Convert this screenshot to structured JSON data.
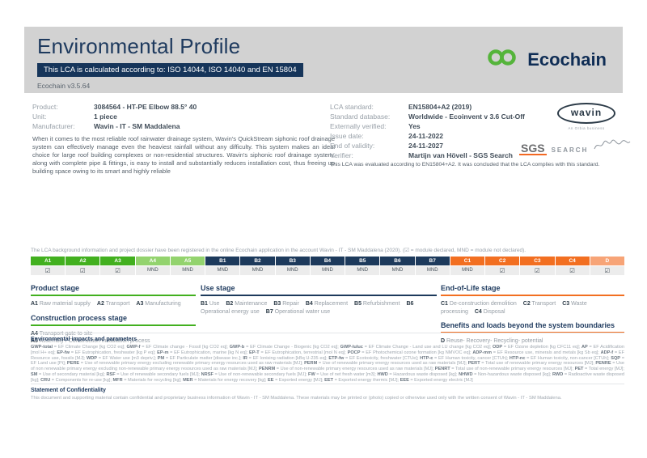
{
  "header": {
    "title": "Environmental Profile",
    "subtitle": "This LCA is calculated according to: ISO 14044, ISO 14040 and EN 15804",
    "version": "Ecochain v3.5.64",
    "brand": "Ecochain",
    "brand_green": "#55b43b",
    "brand_navy": "#0f2d55"
  },
  "product_info": {
    "rows": [
      {
        "label": "Product:",
        "value": "3084564 - HT-PE Elbow 88.5° 40"
      },
      {
        "label": "Unit:",
        "value": "1 piece"
      },
      {
        "label": "Manufacturer:",
        "value": "Wavin - IT - SM Maddalena"
      }
    ],
    "description": "When it comes to the most reliable roof rainwater drainage system, Wavin's QuickStream siphonic roof drainage system can effectively manage even the heaviest rainfall without any difficulty. This system makes an ideal choice for large roof building complexes or non-residential structures. Wavin's siphonic roof drainage system, along with complete pipe & fittings, is easy to install and substantially reduces installation cost, thus freeing up building space owing to its smart and highly reliable"
  },
  "lca_info": {
    "rows": [
      {
        "label": "LCA standard:",
        "value": "EN15804+A2 (2019)"
      },
      {
        "label": "Standard database:",
        "value": "Worldwide - Ecoinvent v 3.6 Cut-Off"
      },
      {
        "label": "Externally verified:",
        "value": "Yes"
      },
      {
        "label": "Issue date:",
        "value": "24-11-2022"
      },
      {
        "label": "End of validity:",
        "value": "24-11-2027"
      },
      {
        "label": "Verifier:",
        "value": "Martijn van Hövell - SGS Search"
      }
    ],
    "evaluation": "This LCA was evaluated according to EN15804+A2. It was concluded that the LCA complies with this standard."
  },
  "logos": {
    "wavin": "wavin",
    "wavin_sub": "An Orbia business",
    "sgs": "SGS",
    "sgs_search": "SEARCH"
  },
  "registration_note": "The LCA background information and project dossier have been registered in the online Ecochain application in the account Wavin - IT - SM Maddalena (2020). (☑ = module declared, MND = module not declared).",
  "module_table": {
    "groups": {
      "product": "#42b01f",
      "construction": "#93d36e",
      "use": "#1d3a5c",
      "eol": "#f26f21",
      "benefits": "#f7a477"
    },
    "columns": [
      {
        "code": "A1",
        "status": "☑",
        "group": "product"
      },
      {
        "code": "A2",
        "status": "☑",
        "group": "product"
      },
      {
        "code": "A3",
        "status": "☑",
        "group": "product"
      },
      {
        "code": "A4",
        "status": "MND",
        "group": "construction"
      },
      {
        "code": "A5",
        "status": "MND",
        "group": "construction"
      },
      {
        "code": "B1",
        "status": "MND",
        "group": "use"
      },
      {
        "code": "B2",
        "status": "MND",
        "group": "use"
      },
      {
        "code": "B3",
        "status": "MND",
        "group": "use"
      },
      {
        "code": "B4",
        "status": "MND",
        "group": "use"
      },
      {
        "code": "B5",
        "status": "MND",
        "group": "use"
      },
      {
        "code": "B6",
        "status": "MND",
        "group": "use"
      },
      {
        "code": "B7",
        "status": "MND",
        "group": "use"
      },
      {
        "code": "C1",
        "status": "MND",
        "group": "eol"
      },
      {
        "code": "C2",
        "status": "☑",
        "group": "eol"
      },
      {
        "code": "C3",
        "status": "☑",
        "group": "eol"
      },
      {
        "code": "C4",
        "status": "☑",
        "group": "eol"
      },
      {
        "code": "D",
        "status": "☑",
        "group": "benefits"
      }
    ]
  },
  "stages": {
    "columns": [
      {
        "blocks": [
          {
            "title": "Product stage",
            "accent": "#42b01f",
            "layout": "inline",
            "items": [
              {
                "code": "A1",
                "label": "Raw material supply"
              },
              {
                "code": "A2",
                "label": "Transport"
              },
              {
                "code": "A3",
                "label": "Manufacturing"
              }
            ]
          },
          {
            "title": "Construction process stage",
            "accent": "#42b01f",
            "layout": "block",
            "items": [
              {
                "code": "A4",
                "label": "Transport gate to site"
              },
              {
                "code": "A5",
                "label": "Assembly / Construction installation process"
              }
            ]
          }
        ]
      },
      {
        "blocks": [
          {
            "title": "Use stage",
            "accent": "#1d3a5c",
            "layout": "inline",
            "items": [
              {
                "code": "B1",
                "label": "Use"
              },
              {
                "code": "B2",
                "label": "Maintenance"
              },
              {
                "code": "B3",
                "label": "Repair"
              },
              {
                "code": "B4",
                "label": "Replacement"
              },
              {
                "code": "B5",
                "label": "Refurbishment"
              },
              {
                "code": "B6",
                "label": "Operational energy use"
              },
              {
                "code": "B7",
                "label": "Operational water use"
              }
            ]
          }
        ]
      },
      {
        "blocks": [
          {
            "title": "End-of-Life stage",
            "accent": "#f26f21",
            "layout": "inline",
            "items": [
              {
                "code": "C1",
                "label": "De-construction demolition"
              },
              {
                "code": "C2",
                "label": "Transport"
              },
              {
                "code": "C3",
                "label": "Waste processing"
              },
              {
                "code": "C4",
                "label": "Disposal"
              }
            ]
          },
          {
            "title": "Benefits and loads beyond the system boundaries",
            "accent": "#f26f21",
            "layout": "block",
            "items": [
              {
                "code": "D",
                "label": "Reuse- Recovery- Recycling- potential"
              }
            ]
          }
        ]
      }
    ]
  },
  "impacts": {
    "title": "Environmental impacts and parameters",
    "entries": [
      {
        "c": "GWP-total",
        "d": "EF Climate Change [kg CO2 eq]"
      },
      {
        "c": "GWP-f",
        "d": "EF Climate change - Fossil [kg CO2 eq]"
      },
      {
        "c": "GWP-b",
        "d": "EF Climate Change - Biogenic [kg CO2 eq]"
      },
      {
        "c": "GWP-luluc",
        "d": "EF Climate Change - Land use and LU change [kg CO2 eq]"
      },
      {
        "c": "ODP",
        "d": "EF Ozone depletion [kg CFC11 eq]"
      },
      {
        "c": "AP",
        "d": "EF Acidification [mol H+ eq]"
      },
      {
        "c": "EP-fw",
        "d": "EF Eutrophication, freshwater [kg P eq]"
      },
      {
        "c": "EP-m",
        "d": "EF Eutrophication, marine [kg N eq]"
      },
      {
        "c": "EP-T",
        "d": "EF Eutrophication, terrestrial [mol N eq]"
      },
      {
        "c": "POCP",
        "d": "EF Photochemical ozone formation [kg NMVOC eq]"
      },
      {
        "c": "ADP-mm",
        "d": "EF Resource use, minerals and metals [kg Sb eq]"
      },
      {
        "c": "ADP-f",
        "d": "EF Resource use, fossils [MJ]"
      },
      {
        "c": "WDP",
        "d": "EF Water use [m3 depriv.]"
      },
      {
        "c": "PM",
        "d": "EF Particulate matter [disease inc.]"
      },
      {
        "c": "IR",
        "d": "EF Ionising radiation [kBq U-235 eq]"
      },
      {
        "c": "ETP-fw",
        "d": "EF Ecotoxicity, freshwater [CTUe]"
      },
      {
        "c": "HTP-c",
        "d": "EF Human toxicity, cancer [CTUh]"
      },
      {
        "c": "HTP-nc",
        "d": "EF Human toxicity, non-cancer [CTUh]"
      },
      {
        "c": "SQP",
        "d": "EF Land use [Pt]"
      },
      {
        "c": "PERE",
        "d": "Use of renewable primary energy excluding renewable primary energy resources used as raw materials [MJ]"
      },
      {
        "c": "PERM",
        "d": "Use of renewable primary energy resources used as raw materials [MJ]"
      },
      {
        "c": "PERT",
        "d": "Total use of renewable primary energy resources [MJ]"
      },
      {
        "c": "PENRE",
        "d": "Use of non renewable primary energy excluding non-renewable primary energy resources used as raw materials [MJ]"
      },
      {
        "c": "PENRM",
        "d": "Use of non-renewable primary energy resources used as raw materials [MJ]"
      },
      {
        "c": "PENRT",
        "d": "Total use of non-renewable primary energy resources [MJ]"
      },
      {
        "c": "PET",
        "d": "Total energy [MJ]"
      },
      {
        "c": "SM",
        "d": "Use of secondary material [kg]"
      },
      {
        "c": "RSF",
        "d": "Use of renewable secondary fuels [MJ]"
      },
      {
        "c": "NRSF",
        "d": "Use of non-renewable secondary fuels [MJ]"
      },
      {
        "c": "FW",
        "d": "Use of net fresh water [m3]"
      },
      {
        "c": "HWD",
        "d": "Hazardous waste disposed [kg]"
      },
      {
        "c": "NHWD",
        "d": "Non-hazardous waste disposed [kg]"
      },
      {
        "c": "RWD",
        "d": "Radioactive waste disposed [kg]"
      },
      {
        "c": "CRU",
        "d": "Components for re-use [kg]"
      },
      {
        "c": "MFR",
        "d": "Materials for recycling [kg]"
      },
      {
        "c": "MER",
        "d": "Materials for energy recovery [kg]"
      },
      {
        "c": "EE",
        "d": "Exported energy [MJ]"
      },
      {
        "c": "EET",
        "d": "Exported energy thermic [MJ]"
      },
      {
        "c": "EEE",
        "d": "Exported energy electric [MJ]"
      }
    ]
  },
  "confidentiality": {
    "title": "Statement of Confidentiality",
    "text": "This document and supporting material contain confidential and proprietary business information of Wavin - IT - SM Maddalena. These materials may be printed or (photo) copied or otherwise used only with the written consent of Wavin - IT - SM Maddalena."
  }
}
